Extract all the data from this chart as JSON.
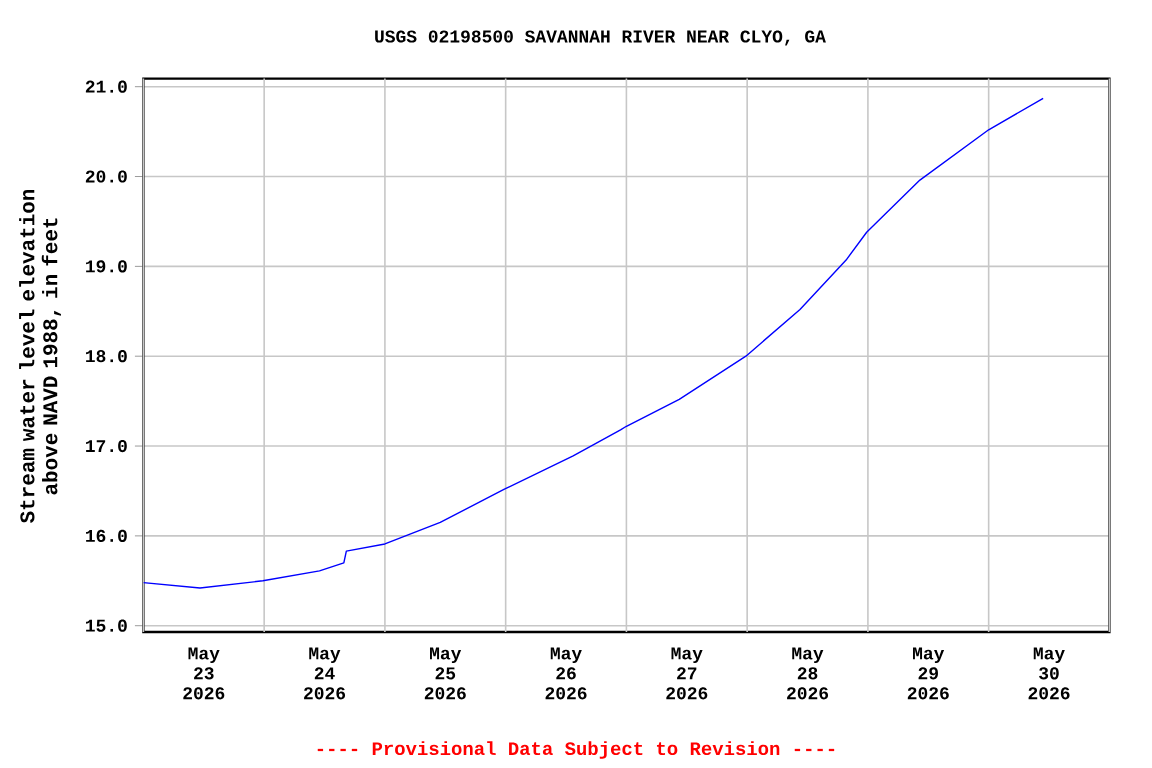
{
  "chart_data": {
    "type": "line",
    "title": "USGS 02198500 SAVANNAH RIVER NEAR CLYO, GA",
    "ylabel": "Stream water level elevation above NAVD 1988, in feet",
    "annotations": [
      "---- Provisional Data Subject to Revision ----"
    ],
    "x": [
      "2026-05-23T00:00",
      "2026-05-23T11:15",
      "2026-05-23T23:45",
      "2026-05-24T11:00",
      "2026-05-24T15:50",
      "2026-05-24T16:20",
      "2026-05-25T00:00",
      "2026-05-25T11:00",
      "2026-05-25T23:45",
      "2026-05-26T13:25",
      "2026-05-26T22:50",
      "2026-05-27T00:00",
      "2026-05-27T10:30",
      "2026-05-27T23:45",
      "2026-05-28T10:30",
      "2026-05-28T19:40",
      "2026-05-28T23:45",
      "2026-05-29T10:20",
      "2026-05-30T00:00",
      "2026-05-30T10:50"
    ],
    "series": [
      {
        "color": "#0000ff",
        "values": [
          15.48,
          15.42,
          15.5,
          15.61,
          15.7,
          15.83,
          15.91,
          16.15,
          16.52,
          16.89,
          17.18,
          17.22,
          17.52,
          18.0,
          18.52,
          19.07,
          19.38,
          19.96,
          20.52,
          20.87
        ]
      }
    ],
    "xlim": [
      "2026-05-23T00:00",
      "2026-05-31T00:00"
    ],
    "xticks": [
      {
        "value": "2026-05-23T00:00",
        "label": null
      },
      {
        "value": "2026-05-23T12:00",
        "label": "May 23 2026"
      },
      {
        "value": "2026-05-24T00:00",
        "label": null
      },
      {
        "value": "2026-05-24T12:00",
        "label": "May 24 2026"
      },
      {
        "value": "2026-05-25T00:00",
        "label": null
      },
      {
        "value": "2026-05-25T12:00",
        "label": "May 25 2026"
      },
      {
        "value": "2026-05-26T00:00",
        "label": null
      },
      {
        "value": "2026-05-26T12:00",
        "label": "May 26 2026"
      },
      {
        "value": "2026-05-27T00:00",
        "label": null
      },
      {
        "value": "2026-05-27T12:00",
        "label": "May 27 2026"
      },
      {
        "value": "2026-05-28T00:00",
        "label": null
      },
      {
        "value": "2026-05-28T12:00",
        "label": "May 28 2026"
      },
      {
        "value": "2026-05-29T00:00",
        "label": null
      },
      {
        "value": "2026-05-29T12:00",
        "label": "May 29 2026"
      },
      {
        "value": "2026-05-30T00:00",
        "label": null
      },
      {
        "value": "2026-05-30T12:00",
        "label": "May 30 2026"
      },
      {
        "value": "2026-05-31T00:00",
        "label": null
      }
    ],
    "ylim": [
      14.93,
      21.09
    ],
    "yticks": [
      {
        "value": 15,
        "label": "15.0"
      },
      {
        "value": 16,
        "label": "16.0"
      },
      {
        "value": 17,
        "label": "17.0"
      },
      {
        "value": 18,
        "label": "18.0"
      },
      {
        "value": 19,
        "label": "19.0"
      },
      {
        "value": 20,
        "label": "20.0"
      },
      {
        "value": 21,
        "label": "21.0"
      }
    ],
    "grid": true,
    "marker": "none",
    "line_style": "solid"
  }
}
